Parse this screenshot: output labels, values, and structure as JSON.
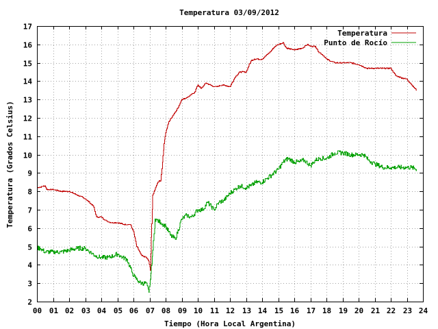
{
  "chart_data": {
    "type": "line",
    "title": "Temperatura 03/09/2012",
    "xlabel": "Tiempo (Hora Local Argentina)",
    "ylabel": "Temperatura (Grados Celsius)",
    "xlim": [
      0,
      24
    ],
    "ylim": [
      2,
      17
    ],
    "x_ticks": [
      "00",
      "01",
      "02",
      "03",
      "04",
      "05",
      "06",
      "07",
      "08",
      "09",
      "10",
      "11",
      "12",
      "13",
      "14",
      "15",
      "16",
      "17",
      "18",
      "19",
      "20",
      "21",
      "22",
      "23",
      "24"
    ],
    "y_ticks": [
      2,
      3,
      4,
      5,
      6,
      7,
      8,
      9,
      10,
      11,
      12,
      13,
      14,
      15,
      16,
      17
    ],
    "grid": true,
    "legend_position": "top-right",
    "colors": {
      "temperatura": "#c00000",
      "punto_rocio": "#00a000"
    },
    "series": [
      {
        "name": "Temperatura",
        "x": [
          0,
          0.5,
          0.6,
          1,
          1.5,
          2,
          2.5,
          3,
          3.5,
          3.7,
          4,
          4.3,
          4.6,
          5,
          5.4,
          5.8,
          6,
          6.2,
          6.5,
          6.8,
          6.95,
          7.05,
          7.1,
          7.2,
          7.5,
          7.7,
          7.8,
          7.9,
          8.0,
          8.2,
          8.5,
          8.8,
          9.0,
          9.3,
          9.5,
          9.8,
          10.0,
          10.2,
          10.5,
          11.0,
          11.2,
          11.5,
          12.0,
          12.3,
          12.6,
          13.0,
          13.3,
          13.5,
          14.0,
          14.5,
          14.8,
          15.0,
          15.3,
          15.5,
          16.0,
          16.5,
          16.8,
          17.0,
          17.3,
          17.5,
          17.8,
          18.0,
          18.5,
          19.0,
          19.5,
          20.0,
          20.5,
          21.0,
          21.5,
          22.0,
          22.3,
          22.6,
          23.0,
          23.3,
          23.6
        ],
        "values": [
          8.2,
          8.3,
          8.1,
          8.1,
          8.0,
          8.0,
          7.8,
          7.6,
          7.2,
          6.6,
          6.6,
          6.4,
          6.3,
          6.3,
          6.2,
          6.2,
          5.8,
          5.0,
          4.5,
          4.4,
          4.2,
          3.7,
          5.5,
          7.8,
          8.5,
          8.6,
          9.6,
          10.6,
          11.2,
          11.8,
          12.2,
          12.6,
          13.0,
          13.1,
          13.2,
          13.4,
          13.8,
          13.6,
          13.9,
          13.7,
          13.7,
          13.8,
          13.7,
          14.2,
          14.5,
          14.5,
          15.1,
          15.2,
          15.2,
          15.6,
          15.9,
          16.0,
          16.1,
          15.8,
          15.7,
          15.8,
          16.0,
          15.9,
          15.9,
          15.6,
          15.4,
          15.2,
          15.0,
          15.0,
          15.0,
          14.9,
          14.7,
          14.7,
          14.7,
          14.7,
          14.3,
          14.2,
          14.1,
          13.8,
          13.5
        ]
      },
      {
        "name": "Punto de Rocío",
        "x": [
          0,
          0.2,
          0.5,
          1,
          1.5,
          2,
          2.5,
          3,
          3.3,
          3.6,
          4,
          4.4,
          4.8,
          5.0,
          5.3,
          5.6,
          5.9,
          6.1,
          6.3,
          6.5,
          6.8,
          6.95,
          7.05,
          7.2,
          7.35,
          7.5,
          7.7,
          8.0,
          8.3,
          8.6,
          9.0,
          9.3,
          9.6,
          10.0,
          10.3,
          10.6,
          11.0,
          11.3,
          11.6,
          12.0,
          12.3,
          12.6,
          13.0,
          13.3,
          13.6,
          14.0,
          14.3,
          14.6,
          15.0,
          15.3,
          15.6,
          16.0,
          16.3,
          16.6,
          17.0,
          17.3,
          17.6,
          18.0,
          18.5,
          19.0,
          19.5,
          20.0,
          20.3,
          20.6,
          21.0,
          21.5,
          22.0,
          22.5,
          23.0,
          23.3,
          23.6
        ],
        "values": [
          4.9,
          4.9,
          4.7,
          4.7,
          4.7,
          4.8,
          4.9,
          4.9,
          4.7,
          4.5,
          4.4,
          4.4,
          4.5,
          4.6,
          4.4,
          4.3,
          3.6,
          3.3,
          3.1,
          3.0,
          3.0,
          2.5,
          3.2,
          4.8,
          6.5,
          6.4,
          6.3,
          6.1,
          5.6,
          5.4,
          6.5,
          6.7,
          6.6,
          7.0,
          7.0,
          7.4,
          7.0,
          7.4,
          7.5,
          7.9,
          8.1,
          8.3,
          8.2,
          8.3,
          8.5,
          8.5,
          8.7,
          8.9,
          9.2,
          9.6,
          9.8,
          9.6,
          9.6,
          9.7,
          9.4,
          9.7,
          9.8,
          9.8,
          10.1,
          10.1,
          10.0,
          10.0,
          10.0,
          9.7,
          9.5,
          9.3,
          9.3,
          9.3,
          9.3,
          9.3,
          9.2
        ]
      }
    ]
  }
}
